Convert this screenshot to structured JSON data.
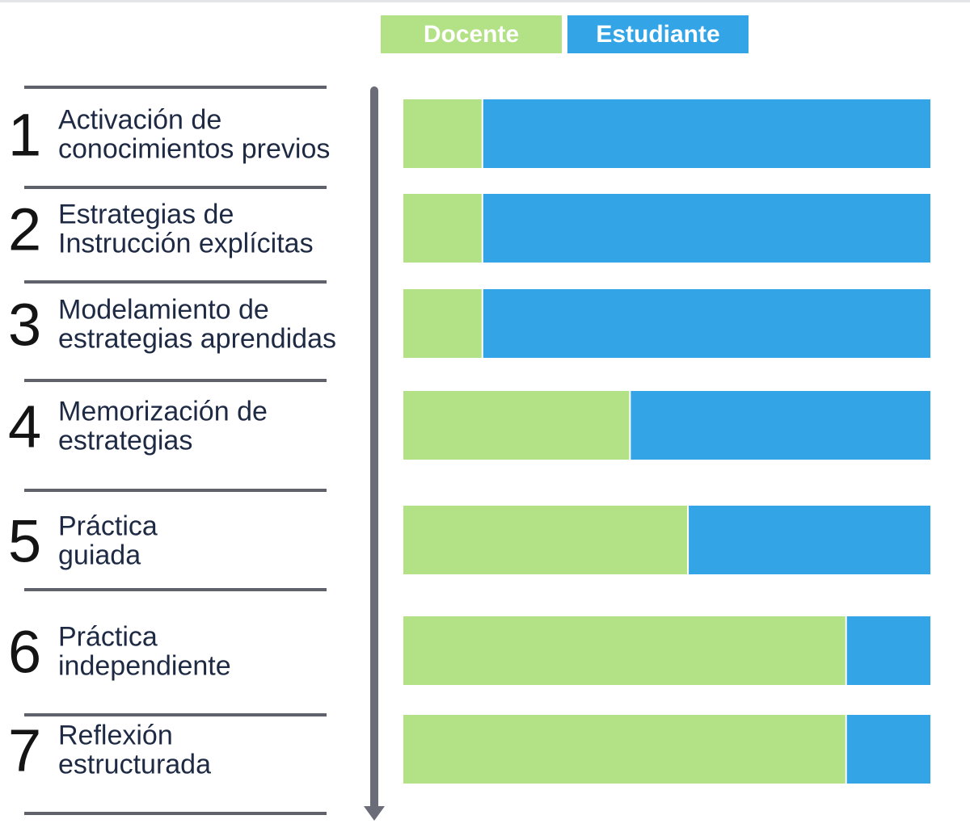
{
  "colors": {
    "docente": "#b2e186",
    "estudiante": "#33a5e6",
    "separator": "#5f616b",
    "axis": "#6a6c78",
    "text": "#1e2a44",
    "number": "#141414"
  },
  "chart_data": {
    "type": "bar",
    "orientation": "horizontal",
    "stacked": true,
    "normalized": true,
    "title": "",
    "xlabel": "",
    "ylabel": "",
    "xlim": [
      0,
      100
    ],
    "legend_position": "top",
    "categories": [
      {
        "number": "1",
        "line1": "Activación de",
        "line2": "conocimientos previos"
      },
      {
        "number": "2",
        "line1": "Estrategias de",
        "line2": "Instrucción explícitas"
      },
      {
        "number": "3",
        "line1": "Modelamiento de",
        "line2": "estrategias aprendidas"
      },
      {
        "number": "4",
        "line1": "Memorización de",
        "line2": "estrategias"
      },
      {
        "number": "5",
        "line1": "Práctica",
        "line2": "guiada"
      },
      {
        "number": "6",
        "line1": "Práctica",
        "line2": "independiente"
      },
      {
        "number": "7",
        "line1": "Reflexión",
        "line2": "estructurada"
      }
    ],
    "series": [
      {
        "name": "Docente",
        "color": "#b2e186",
        "values": [
          15,
          15,
          15,
          43,
          54,
          84,
          84
        ]
      },
      {
        "name": "Estudiante",
        "color": "#33a5e6",
        "values": [
          85,
          85,
          85,
          57,
          46,
          16,
          16
        ]
      }
    ]
  }
}
